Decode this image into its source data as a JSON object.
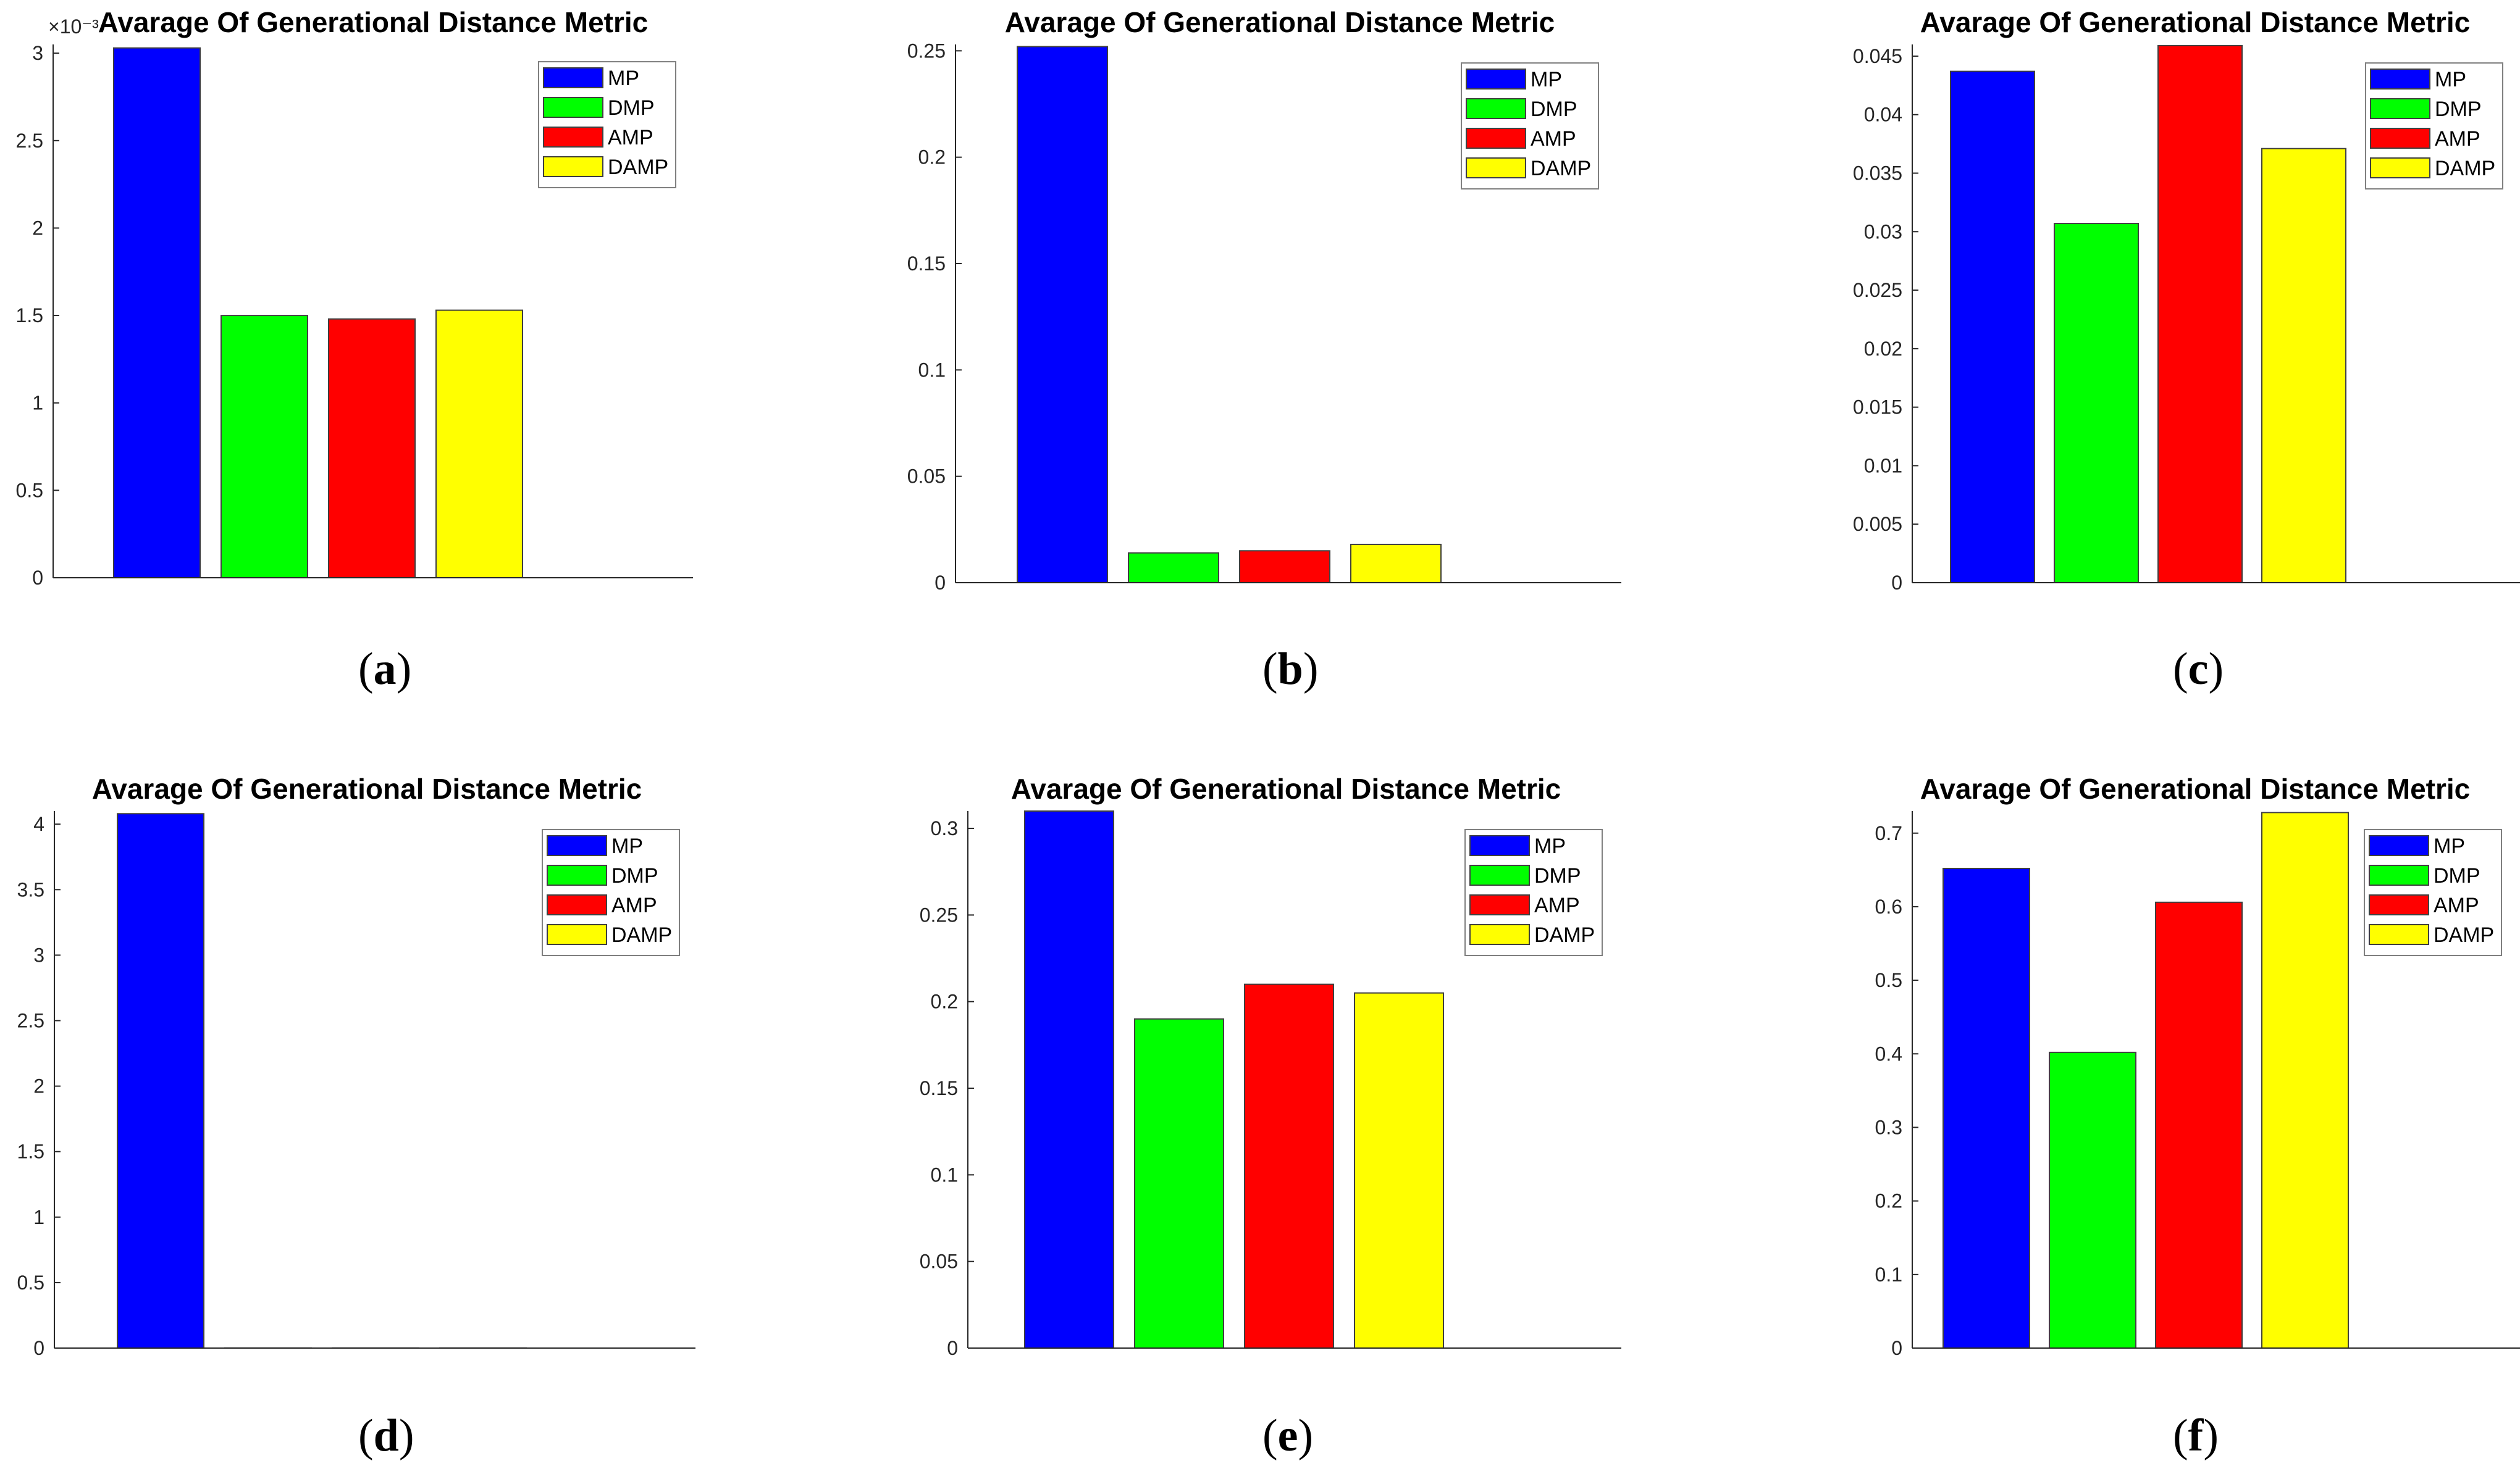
{
  "figure": {
    "legend": [
      "MP",
      "DMP",
      "AMP",
      "DAMP"
    ],
    "colors": {
      "MP": "#0000ff",
      "DMP": "#00ff00",
      "AMP": "#ff0000",
      "DAMP": "#ffff00"
    },
    "axis_color": "#262626",
    "bar_edge_color": "#404040"
  },
  "chart_data": [
    {
      "type": "bar",
      "panel": "a",
      "title": "Avarage Of Generational Distance Metric",
      "categories": [
        "MP",
        "DMP",
        "AMP",
        "DAMP"
      ],
      "values": [
        3.03,
        1.5,
        1.48,
        1.53
      ],
      "ylim": [
        0,
        3.05
      ],
      "yticks": [
        0,
        0.5,
        1,
        1.5,
        2,
        2.5,
        3
      ],
      "ytick_labels": [
        "0",
        "0.5",
        "1",
        "1.5",
        "2",
        "2.5",
        "3"
      ],
      "exponent_label": "×10⁻³",
      "xlabel": "",
      "ylabel": "",
      "caption": {
        "open": "(",
        "letter": "a",
        "close": ")"
      }
    },
    {
      "type": "bar",
      "panel": "b",
      "title": "Avarage Of Generational Distance Metric",
      "categories": [
        "MP",
        "DMP",
        "AMP",
        "DAMP"
      ],
      "values": [
        0.252,
        0.014,
        0.015,
        0.018
      ],
      "ylim": [
        0,
        0.253
      ],
      "yticks": [
        0,
        0.05,
        0.1,
        0.15,
        0.2,
        0.25
      ],
      "ytick_labels": [
        "0",
        "0.05",
        "0.1",
        "0.15",
        "0.2",
        "0.25"
      ],
      "xlabel": "",
      "ylabel": "",
      "caption": {
        "open": "(",
        "letter": "b",
        "close": ")"
      }
    },
    {
      "type": "bar",
      "panel": "c",
      "title": "Avarage Of Generational Distance Metric",
      "categories": [
        "MP",
        "DMP",
        "AMP",
        "DAMP"
      ],
      "values": [
        0.0437,
        0.0307,
        0.0459,
        0.0371
      ],
      "ylim": [
        0,
        0.046
      ],
      "yticks": [
        0,
        0.005,
        0.01,
        0.015,
        0.02,
        0.025,
        0.03,
        0.035,
        0.04,
        0.045
      ],
      "ytick_labels": [
        "0",
        "0.005",
        "0.01",
        "0.015",
        "0.02",
        "0.025",
        "0.03",
        "0.035",
        "0.04",
        "0.045"
      ],
      "xlabel": "",
      "ylabel": "",
      "caption": {
        "open": "(",
        "letter": "c",
        "close": ")"
      }
    },
    {
      "type": "bar",
      "panel": "d",
      "title": "Avarage Of Generational Distance Metric",
      "categories": [
        "MP",
        "DMP",
        "AMP",
        "DAMP"
      ],
      "values": [
        4.08,
        0.001,
        0.001,
        0.001
      ],
      "ylim": [
        0,
        4.1
      ],
      "yticks": [
        0,
        0.5,
        1,
        1.5,
        2,
        2.5,
        3,
        3.5,
        4
      ],
      "ytick_labels": [
        "0",
        "0.5",
        "1",
        "1.5",
        "2",
        "2.5",
        "3",
        "3.5",
        "4"
      ],
      "xlabel": "",
      "ylabel": "",
      "caption": {
        "open": "(",
        "letter": "d",
        "close": ")"
      }
    },
    {
      "type": "bar",
      "panel": "e",
      "title": "Avarage Of Generational Distance Metric",
      "categories": [
        "MP",
        "DMP",
        "AMP",
        "DAMP"
      ],
      "values": [
        0.31,
        0.19,
        0.21,
        0.205
      ],
      "ylim": [
        0,
        0.31
      ],
      "yticks": [
        0,
        0.05,
        0.1,
        0.15,
        0.2,
        0.25,
        0.3
      ],
      "ytick_labels": [
        "0",
        "0.05",
        "0.1",
        "0.15",
        "0.2",
        "0.25",
        "0.3"
      ],
      "xlabel": "",
      "ylabel": "",
      "caption": {
        "open": "(",
        "letter": "e",
        "close": ")"
      }
    },
    {
      "type": "bar",
      "panel": "f",
      "title": "Avarage Of Generational Distance Metric",
      "categories": [
        "MP",
        "DMP",
        "AMP",
        "DAMP"
      ],
      "values": [
        0.652,
        0.402,
        0.606,
        0.728
      ],
      "ylim": [
        0,
        0.73
      ],
      "yticks": [
        0,
        0.1,
        0.2,
        0.3,
        0.4,
        0.5,
        0.6,
        0.7
      ],
      "ytick_labels": [
        "0",
        "0.1",
        "0.2",
        "0.3",
        "0.4",
        "0.5",
        "0.6",
        "0.7"
      ],
      "xlabel": "",
      "ylabel": "",
      "caption": {
        "open": "(",
        "letter": "f",
        "close": ")"
      }
    }
  ]
}
